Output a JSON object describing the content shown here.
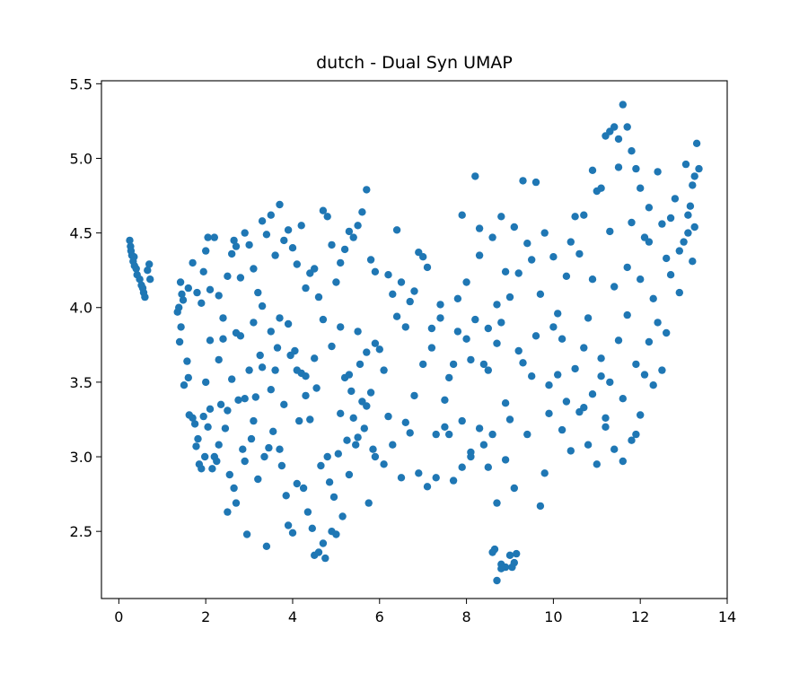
{
  "chart_data": {
    "type": "scatter",
    "title": "dutch - Dual Syn UMAP",
    "xlabel": "",
    "ylabel": "",
    "xlim": [
      -0.4,
      14.0
    ],
    "ylim": [
      2.05,
      5.52
    ],
    "xticks": [
      0,
      2,
      4,
      6,
      8,
      10,
      12,
      14
    ],
    "yticks": [
      2.5,
      3.0,
      3.5,
      4.0,
      4.5,
      5.0,
      5.5
    ],
    "xtick_labels": [
      "0",
      "2",
      "4",
      "6",
      "8",
      "10",
      "12",
      "14"
    ],
    "ytick_labels": [
      "2.5",
      "3.0",
      "3.5",
      "4.0",
      "4.5",
      "5.0",
      "5.5"
    ],
    "grid": false,
    "legend": "none",
    "marker_color": "#1f77b4",
    "points": [
      [
        0.25,
        4.45
      ],
      [
        0.27,
        4.41
      ],
      [
        0.28,
        4.38
      ],
      [
        0.3,
        4.35
      ],
      [
        0.33,
        4.31
      ],
      [
        0.36,
        4.28
      ],
      [
        0.4,
        4.26
      ],
      [
        0.42,
        4.22
      ],
      [
        0.48,
        4.19
      ],
      [
        0.52,
        4.15
      ],
      [
        0.55,
        4.13
      ],
      [
        0.57,
        4.1
      ],
      [
        0.6,
        4.07
      ],
      [
        0.66,
        4.25
      ],
      [
        0.7,
        4.29
      ],
      [
        0.72,
        4.19
      ],
      [
        0.35,
        4.34
      ],
      [
        1.35,
        3.97
      ],
      [
        1.38,
        4.0
      ],
      [
        1.42,
        4.17
      ],
      [
        1.45,
        4.09
      ],
      [
        1.48,
        4.05
      ],
      [
        1.4,
        3.77
      ],
      [
        1.43,
        3.87
      ],
      [
        1.5,
        3.48
      ],
      [
        1.57,
        3.64
      ],
      [
        1.6,
        3.53
      ],
      [
        1.62,
        3.28
      ],
      [
        1.7,
        3.26
      ],
      [
        1.75,
        3.22
      ],
      [
        1.78,
        3.07
      ],
      [
        1.82,
        3.12
      ],
      [
        1.85,
        2.95
      ],
      [
        1.9,
        2.92
      ],
      [
        1.95,
        3.27
      ],
      [
        1.98,
        3.0
      ],
      [
        2.0,
        3.5
      ],
      [
        2.05,
        3.2
      ],
      [
        2.1,
        3.32
      ],
      [
        2.15,
        2.92
      ],
      [
        2.2,
        3.0
      ],
      [
        2.25,
        2.97
      ],
      [
        2.3,
        3.08
      ],
      [
        2.35,
        3.35
      ],
      [
        2.4,
        3.79
      ],
      [
        2.45,
        3.19
      ],
      [
        2.5,
        2.63
      ],
      [
        2.55,
        2.88
      ],
      [
        2.6,
        3.52
      ],
      [
        2.65,
        2.79
      ],
      [
        2.7,
        2.69
      ],
      [
        2.75,
        3.38
      ],
      [
        2.8,
        3.81
      ],
      [
        2.85,
        3.05
      ],
      [
        2.9,
        2.97
      ],
      [
        2.95,
        2.48
      ],
      [
        3.0,
        3.58
      ],
      [
        3.05,
        3.12
      ],
      [
        3.1,
        3.24
      ],
      [
        3.15,
        3.4
      ],
      [
        3.2,
        2.85
      ],
      [
        3.25,
        3.68
      ],
      [
        3.3,
        4.01
      ],
      [
        3.35,
        3.0
      ],
      [
        3.4,
        2.4
      ],
      [
        3.45,
        3.06
      ],
      [
        3.5,
        3.84
      ],
      [
        3.55,
        3.17
      ],
      [
        3.6,
        3.58
      ],
      [
        3.65,
        3.73
      ],
      [
        3.7,
        3.05
      ],
      [
        3.75,
        2.94
      ],
      [
        3.8,
        3.35
      ],
      [
        3.85,
        2.74
      ],
      [
        3.9,
        2.54
      ],
      [
        3.95,
        3.68
      ],
      [
        4.0,
        2.49
      ],
      [
        4.05,
        3.71
      ],
      [
        4.1,
        2.82
      ],
      [
        4.15,
        3.24
      ],
      [
        4.2,
        3.56
      ],
      [
        4.25,
        2.79
      ],
      [
        4.3,
        3.54
      ],
      [
        4.35,
        2.63
      ],
      [
        4.4,
        3.25
      ],
      [
        4.45,
        2.52
      ],
      [
        4.5,
        2.34
      ],
      [
        4.55,
        3.46
      ],
      [
        4.6,
        2.36
      ],
      [
        4.65,
        2.94
      ],
      [
        4.7,
        2.42
      ],
      [
        4.75,
        2.32
      ],
      [
        4.8,
        3.0
      ],
      [
        4.85,
        2.83
      ],
      [
        4.9,
        2.5
      ],
      [
        4.95,
        2.73
      ],
      [
        5.0,
        2.48
      ],
      [
        5.05,
        3.02
      ],
      [
        5.1,
        3.29
      ],
      [
        5.15,
        2.6
      ],
      [
        5.2,
        3.53
      ],
      [
        5.25,
        3.11
      ],
      [
        5.3,
        2.88
      ],
      [
        5.35,
        3.44
      ],
      [
        5.4,
        3.26
      ],
      [
        5.45,
        3.08
      ],
      [
        5.5,
        3.84
      ],
      [
        5.55,
        3.62
      ],
      [
        5.6,
        3.37
      ],
      [
        5.65,
        3.19
      ],
      [
        5.7,
        3.7
      ],
      [
        5.75,
        2.69
      ],
      [
        5.8,
        3.43
      ],
      [
        5.85,
        3.05
      ],
      [
        5.9,
        3.0
      ],
      [
        1.6,
        4.13
      ],
      [
        1.7,
        4.3
      ],
      [
        1.8,
        4.1
      ],
      [
        1.9,
        4.03
      ],
      [
        1.95,
        4.24
      ],
      [
        2.0,
        4.38
      ],
      [
        2.05,
        4.47
      ],
      [
        2.1,
        4.12
      ],
      [
        2.2,
        4.47
      ],
      [
        2.3,
        4.08
      ],
      [
        2.4,
        3.93
      ],
      [
        2.5,
        4.21
      ],
      [
        2.6,
        4.36
      ],
      [
        2.65,
        4.45
      ],
      [
        2.7,
        4.41
      ],
      [
        2.8,
        4.2
      ],
      [
        2.9,
        4.5
      ],
      [
        3.0,
        4.42
      ],
      [
        3.1,
        4.26
      ],
      [
        3.2,
        4.1
      ],
      [
        3.3,
        4.58
      ],
      [
        3.4,
        4.49
      ],
      [
        3.5,
        4.62
      ],
      [
        3.6,
        4.35
      ],
      [
        3.7,
        4.69
      ],
      [
        3.8,
        4.45
      ],
      [
        3.9,
        4.52
      ],
      [
        4.0,
        4.4
      ],
      [
        4.1,
        4.29
      ],
      [
        4.2,
        4.55
      ],
      [
        4.3,
        4.13
      ],
      [
        4.4,
        4.23
      ],
      [
        4.5,
        4.26
      ],
      [
        4.6,
        4.07
      ],
      [
        4.7,
        4.65
      ],
      [
        4.8,
        4.61
      ],
      [
        4.9,
        4.42
      ],
      [
        5.0,
        4.17
      ],
      [
        5.1,
        4.3
      ],
      [
        5.2,
        4.39
      ],
      [
        5.3,
        4.51
      ],
      [
        5.4,
        4.47
      ],
      [
        5.5,
        4.55
      ],
      [
        5.6,
        4.64
      ],
      [
        5.7,
        4.79
      ],
      [
        5.8,
        4.32
      ],
      [
        5.9,
        4.24
      ],
      [
        2.1,
        3.78
      ],
      [
        2.3,
        3.65
      ],
      [
        2.5,
        3.31
      ],
      [
        2.7,
        3.83
      ],
      [
        2.9,
        3.39
      ],
      [
        3.1,
        3.9
      ],
      [
        3.3,
        3.6
      ],
      [
        3.5,
        3.45
      ],
      [
        3.7,
        3.93
      ],
      [
        3.9,
        3.89
      ],
      [
        4.1,
        3.58
      ],
      [
        4.3,
        3.41
      ],
      [
        4.5,
        3.66
      ],
      [
        4.7,
        3.92
      ],
      [
        4.9,
        3.74
      ],
      [
        5.1,
        3.87
      ],
      [
        5.3,
        3.55
      ],
      [
        5.5,
        3.13
      ],
      [
        5.7,
        3.34
      ],
      [
        5.9,
        3.76
      ],
      [
        6.0,
        3.72
      ],
      [
        6.1,
        3.58
      ],
      [
        6.2,
        3.27
      ],
      [
        6.3,
        4.09
      ],
      [
        6.4,
        3.94
      ],
      [
        6.5,
        4.17
      ],
      [
        6.6,
        3.23
      ],
      [
        6.7,
        4.04
      ],
      [
        6.8,
        3.41
      ],
      [
        6.9,
        4.37
      ],
      [
        7.0,
        3.62
      ],
      [
        7.1,
        4.27
      ],
      [
        7.2,
        3.86
      ],
      [
        7.3,
        3.15
      ],
      [
        7.4,
        3.93
      ],
      [
        7.5,
        3.38
      ],
      [
        7.6,
        3.15
      ],
      [
        7.7,
        3.62
      ],
      [
        7.8,
        4.06
      ],
      [
        7.9,
        3.24
      ],
      [
        8.0,
        3.79
      ],
      [
        8.1,
        3.03
      ],
      [
        8.2,
        3.92
      ],
      [
        8.3,
        4.53
      ],
      [
        8.4,
        3.08
      ],
      [
        8.5,
        3.58
      ],
      [
        8.6,
        3.15
      ],
      [
        8.7,
        3.76
      ],
      [
        8.8,
        3.9
      ],
      [
        8.9,
        3.36
      ],
      [
        9.0,
        3.25
      ],
      [
        9.1,
        2.79
      ],
      [
        9.2,
        3.71
      ],
      [
        9.3,
        3.63
      ],
      [
        9.4,
        3.15
      ],
      [
        9.5,
        3.54
      ],
      [
        9.6,
        3.81
      ],
      [
        9.7,
        2.67
      ],
      [
        9.8,
        2.89
      ],
      [
        9.9,
        3.48
      ],
      [
        6.1,
        2.95
      ],
      [
        6.3,
        3.08
      ],
      [
        6.5,
        2.86
      ],
      [
        6.7,
        3.16
      ],
      [
        6.9,
        2.89
      ],
      [
        7.1,
        2.8
      ],
      [
        7.3,
        2.86
      ],
      [
        7.5,
        3.2
      ],
      [
        7.7,
        2.84
      ],
      [
        7.9,
        2.93
      ],
      [
        8.1,
        3.0
      ],
      [
        8.3,
        3.19
      ],
      [
        8.5,
        2.93
      ],
      [
        8.7,
        2.69
      ],
      [
        8.9,
        2.98
      ],
      [
        6.2,
        4.22
      ],
      [
        6.4,
        4.52
      ],
      [
        6.6,
        3.87
      ],
      [
        6.8,
        4.11
      ],
      [
        7.0,
        4.34
      ],
      [
        7.2,
        3.73
      ],
      [
        7.4,
        4.02
      ],
      [
        7.6,
        3.53
      ],
      [
        7.8,
        3.84
      ],
      [
        8.0,
        4.17
      ],
      [
        8.2,
        4.88
      ],
      [
        8.4,
        3.62
      ],
      [
        8.6,
        4.47
      ],
      [
        8.8,
        4.61
      ],
      [
        9.0,
        4.07
      ],
      [
        9.2,
        4.23
      ],
      [
        9.4,
        4.43
      ],
      [
        9.6,
        4.84
      ],
      [
        9.8,
        4.5
      ],
      [
        10.0,
        4.34
      ],
      [
        8.6,
        2.36
      ],
      [
        8.7,
        2.17
      ],
      [
        8.8,
        2.28
      ],
      [
        8.9,
        2.26
      ],
      [
        9.0,
        2.34
      ],
      [
        9.05,
        2.26
      ],
      [
        9.1,
        2.29
      ],
      [
        9.15,
        2.35
      ],
      [
        8.65,
        2.38
      ],
      [
        8.8,
        2.25
      ],
      [
        10.0,
        3.87
      ],
      [
        10.1,
        3.55
      ],
      [
        10.2,
        3.79
      ],
      [
        10.3,
        4.21
      ],
      [
        10.4,
        4.44
      ],
      [
        10.5,
        4.61
      ],
      [
        10.6,
        4.36
      ],
      [
        10.7,
        3.33
      ],
      [
        10.8,
        3.93
      ],
      [
        10.9,
        4.19
      ],
      [
        11.0,
        4.78
      ],
      [
        11.1,
        3.54
      ],
      [
        11.2,
        3.26
      ],
      [
        11.3,
        4.51
      ],
      [
        11.4,
        4.14
      ],
      [
        11.5,
        4.94
      ],
      [
        11.6,
        3.39
      ],
      [
        11.7,
        4.27
      ],
      [
        11.8,
        4.57
      ],
      [
        11.9,
        3.15
      ],
      [
        12.0,
        4.19
      ],
      [
        12.1,
        3.55
      ],
      [
        12.2,
        4.44
      ],
      [
        12.3,
        3.48
      ],
      [
        12.4,
        3.9
      ],
      [
        10.2,
        3.18
      ],
      [
        10.4,
        3.04
      ],
      [
        10.6,
        3.3
      ],
      [
        10.8,
        3.08
      ],
      [
        11.0,
        2.95
      ],
      [
        11.2,
        3.2
      ],
      [
        11.4,
        3.05
      ],
      [
        11.6,
        2.97
      ],
      [
        11.8,
        3.11
      ],
      [
        12.0,
        3.28
      ],
      [
        10.7,
        4.62
      ],
      [
        10.9,
        4.92
      ],
      [
        11.1,
        4.8
      ],
      [
        11.2,
        5.15
      ],
      [
        11.3,
        5.18
      ],
      [
        11.4,
        5.21
      ],
      [
        11.5,
        5.13
      ],
      [
        11.6,
        5.36
      ],
      [
        11.7,
        5.21
      ],
      [
        11.8,
        5.05
      ],
      [
        11.9,
        4.93
      ],
      [
        12.0,
        4.8
      ],
      [
        12.1,
        4.47
      ],
      [
        12.2,
        4.67
      ],
      [
        12.4,
        4.91
      ],
      [
        12.5,
        4.56
      ],
      [
        12.6,
        4.33
      ],
      [
        12.7,
        4.6
      ],
      [
        12.8,
        4.73
      ],
      [
        12.9,
        4.38
      ],
      [
        13.0,
        4.44
      ],
      [
        13.05,
        4.96
      ],
      [
        13.1,
        4.5
      ],
      [
        13.15,
        4.68
      ],
      [
        13.2,
        4.82
      ],
      [
        13.25,
        4.88
      ],
      [
        13.3,
        5.1
      ],
      [
        13.35,
        4.93
      ],
      [
        13.2,
        4.31
      ],
      [
        12.9,
        4.1
      ],
      [
        12.7,
        4.22
      ],
      [
        13.1,
        4.62
      ],
      [
        13.25,
        4.54
      ],
      [
        12.3,
        4.06
      ],
      [
        12.5,
        3.58
      ],
      [
        12.6,
        3.83
      ],
      [
        12.2,
        3.77
      ],
      [
        11.9,
        3.62
      ],
      [
        11.7,
        3.95
      ],
      [
        11.5,
        3.78
      ],
      [
        11.3,
        3.5
      ],
      [
        11.1,
        3.66
      ],
      [
        10.9,
        3.42
      ],
      [
        10.7,
        3.73
      ],
      [
        10.5,
        3.59
      ],
      [
        10.3,
        3.37
      ],
      [
        10.1,
        3.96
      ],
      [
        9.9,
        3.29
      ],
      [
        9.7,
        4.09
      ],
      [
        9.5,
        4.32
      ],
      [
        9.3,
        4.85
      ],
      [
        9.1,
        4.54
      ],
      [
        8.9,
        4.24
      ],
      [
        8.7,
        4.02
      ],
      [
        8.5,
        3.86
      ],
      [
        8.3,
        4.35
      ],
      [
        8.1,
        3.65
      ],
      [
        7.9,
        4.62
      ]
    ]
  }
}
